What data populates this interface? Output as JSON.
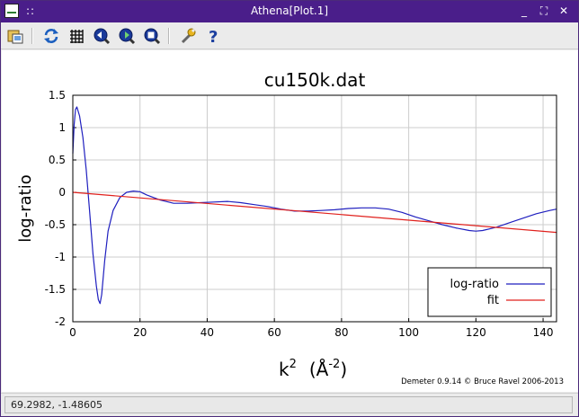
{
  "window": {
    "title": "Athena[Plot.1]"
  },
  "titlebar": {
    "menu_dots": "::",
    "minimize": "_",
    "maximize": "⛶",
    "close": "✕"
  },
  "toolbar": {
    "tools": [
      {
        "name": "save-image-tool",
        "icon": "save-image-icon"
      },
      {
        "name": "replot-tool",
        "icon": "refresh-icon"
      },
      {
        "name": "grid-tool",
        "icon": "grid-icon"
      },
      {
        "name": "zoom-in-tool",
        "icon": "zoom-in-icon"
      },
      {
        "name": "zoom-out-tool",
        "icon": "zoom-out-icon"
      },
      {
        "name": "zoom-reset-tool",
        "icon": "zoom-reset-icon"
      },
      {
        "name": "settings-tool",
        "icon": "wrench-icon"
      },
      {
        "name": "help-tool",
        "icon": "help-icon"
      }
    ]
  },
  "status": {
    "text": "69.2982, -1.48605"
  },
  "chart_data": {
    "type": "line",
    "title": "cu150k.dat",
    "xlabel_base": "k",
    "xlabel_sup": "2",
    "xlabel_unit_base": "(Å",
    "xlabel_unit_sup": "-2",
    "xlabel_unit_close": ")",
    "ylabel": "log-ratio",
    "xlim": [
      0,
      144
    ],
    "ylim": [
      -2,
      1.5
    ],
    "xticks": [
      0,
      20,
      40,
      60,
      80,
      100,
      120,
      140
    ],
    "yticks": [
      1.5,
      1,
      0.5,
      0,
      -0.5,
      -1,
      -1.5,
      -2
    ],
    "xtick_labels": [
      "0",
      "20",
      "40",
      "60",
      "80",
      "100",
      "120",
      "140"
    ],
    "ytick_labels": [
      "1.5",
      "1",
      "0.5",
      "0",
      "-0.5",
      "-1",
      "-1.5",
      "-2"
    ],
    "grid": true,
    "legend_position": "bottom-right",
    "credit": "Demeter 0.9.14 © Bruce Ravel 2006-2013",
    "series": [
      {
        "name": "log-ratio",
        "color": "#1f1fbf",
        "points": [
          [
            0,
            0.6
          ],
          [
            0.4,
            1.05
          ],
          [
            0.8,
            1.28
          ],
          [
            1.2,
            1.32
          ],
          [
            2,
            1.18
          ],
          [
            3,
            0.85
          ],
          [
            4,
            0.35
          ],
          [
            5,
            -0.3
          ],
          [
            6,
            -0.95
          ],
          [
            7,
            -1.45
          ],
          [
            7.6,
            -1.66
          ],
          [
            8.1,
            -1.72
          ],
          [
            8.6,
            -1.58
          ],
          [
            9.5,
            -1.05
          ],
          [
            10.5,
            -0.6
          ],
          [
            12,
            -0.28
          ],
          [
            14,
            -0.08
          ],
          [
            16,
            0.0
          ],
          [
            18,
            0.02
          ],
          [
            20,
            0.01
          ],
          [
            22,
            -0.04
          ],
          [
            26,
            -0.12
          ],
          [
            30,
            -0.17
          ],
          [
            34,
            -0.17
          ],
          [
            38,
            -0.16
          ],
          [
            42,
            -0.15
          ],
          [
            46,
            -0.14
          ],
          [
            50,
            -0.16
          ],
          [
            54,
            -0.19
          ],
          [
            58,
            -0.22
          ],
          [
            62,
            -0.26
          ],
          [
            66,
            -0.29
          ],
          [
            70,
            -0.29
          ],
          [
            74,
            -0.28
          ],
          [
            78,
            -0.27
          ],
          [
            82,
            -0.25
          ],
          [
            86,
            -0.24
          ],
          [
            90,
            -0.24
          ],
          [
            94,
            -0.26
          ],
          [
            98,
            -0.31
          ],
          [
            102,
            -0.38
          ],
          [
            106,
            -0.44
          ],
          [
            110,
            -0.5
          ],
          [
            114,
            -0.55
          ],
          [
            118,
            -0.59
          ],
          [
            120,
            -0.6
          ],
          [
            122,
            -0.59
          ],
          [
            126,
            -0.54
          ],
          [
            130,
            -0.47
          ],
          [
            134,
            -0.4
          ],
          [
            138,
            -0.33
          ],
          [
            142,
            -0.28
          ],
          [
            144,
            -0.26
          ]
        ]
      },
      {
        "name": "fit",
        "color": "#e0201c",
        "points": [
          [
            0,
            0.0
          ],
          [
            144,
            -0.62
          ]
        ]
      }
    ]
  }
}
